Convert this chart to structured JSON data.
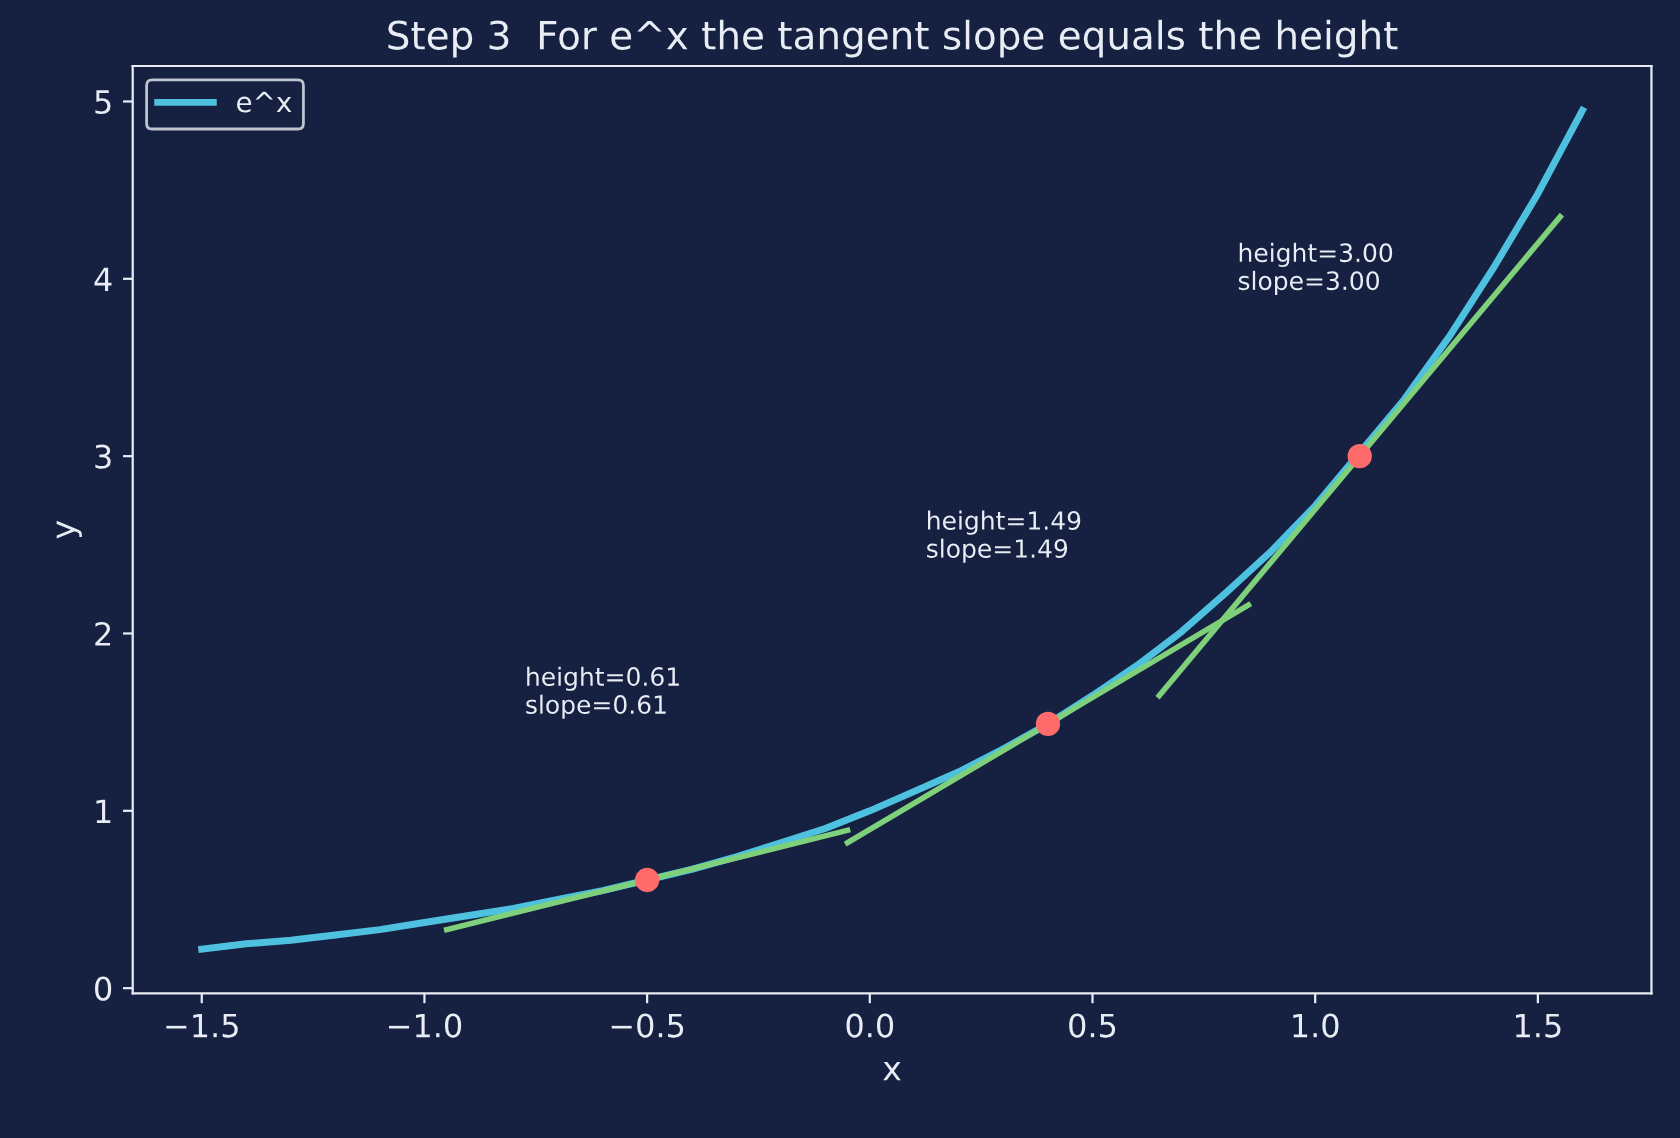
{
  "chart_data": {
    "type": "line",
    "title": "Step 3  For e^x the tangent slope equals the height",
    "xlabel": "x",
    "ylabel": "y",
    "xlim": [
      -1.655,
      1.755
    ],
    "ylim": [
      -0.03,
      5.2
    ],
    "xticks": [
      {
        "value": -1.5,
        "label": "−1.5"
      },
      {
        "value": -1.0,
        "label": "−1.0"
      },
      {
        "value": -0.5,
        "label": "−0.5"
      },
      {
        "value": 0.0,
        "label": "0.0"
      },
      {
        "value": 0.5,
        "label": "0.5"
      },
      {
        "value": 1.0,
        "label": "1.0"
      },
      {
        "value": 1.5,
        "label": "1.5"
      }
    ],
    "yticks": [
      0,
      1,
      2,
      3,
      4,
      5
    ],
    "grid": false,
    "legend": "top left",
    "series": [
      {
        "name": "e^x",
        "color": "#4fc1e0",
        "x": [
          -1.5,
          -1.4,
          -1.3,
          -1.2,
          -1.1,
          -1.0,
          -0.9,
          -0.8,
          -0.7,
          -0.6,
          -0.4,
          -0.3,
          -0.2,
          -0.1,
          0.0,
          0.1,
          0.2,
          0.3,
          0.4,
          0.5,
          0.6,
          0.7,
          0.8,
          0.9,
          1.0,
          1.2,
          1.3,
          1.4,
          1.5,
          1.6
        ],
        "values": [
          0.22,
          0.25,
          0.27,
          0.3,
          0.33,
          0.37,
          0.41,
          0.45,
          0.5,
          0.55,
          0.67,
          0.74,
          0.82,
          0.9,
          1.0,
          1.11,
          1.22,
          1.35,
          1.49,
          1.65,
          1.82,
          2.01,
          2.23,
          2.46,
          2.72,
          3.32,
          3.67,
          4.06,
          4.48,
          4.95
        ]
      },
      {
        "color": "#7ed07a",
        "x": [
          -0.95,
          -0.05
        ],
        "values": [
          0.33,
          0.89
        ]
      },
      {
        "color": "#7ed07a",
        "x": [
          -0.05,
          0.85
        ],
        "values": [
          0.82,
          2.16
        ]
      },
      {
        "color": "#7ed07a",
        "x": [
          0.65,
          1.55
        ],
        "values": [
          1.65,
          4.35
        ]
      },
      {
        "type": "scatter",
        "color": "#ff6b6b",
        "x": [
          -0.5,
          0.4,
          1.1
        ],
        "values": [
          0.61,
          1.49,
          3.0
        ]
      }
    ],
    "annotations": [
      "height=0.61\nslope=0.61",
      "height=1.49\nslope=1.49",
      "height=3.00\nslope=3.00"
    ]
  }
}
